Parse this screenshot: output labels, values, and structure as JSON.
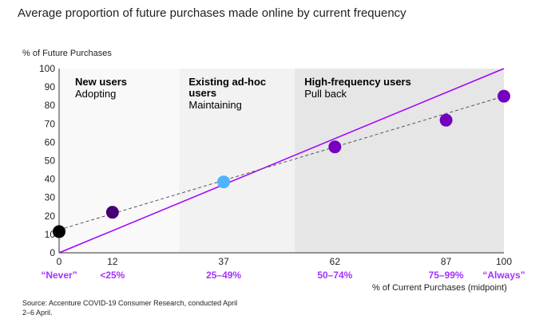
{
  "title": "Average proportion of future purchases made online by current frequency",
  "source": "Source: Accenture COVID-19 Consumer Research, conducted April 2–6 April.",
  "chart_data": {
    "type": "scatter",
    "ylabel": "% of Future Purchases",
    "xlabel": "% of Current Purchases (midpoint)",
    "xlim": [
      0,
      100
    ],
    "ylim": [
      0,
      100
    ],
    "x_ticks": [
      0,
      12,
      37,
      62,
      87,
      100
    ],
    "y_ticks": [
      0,
      10,
      20,
      30,
      40,
      50,
      60,
      70,
      80,
      90,
      100
    ],
    "category_labels": [
      {
        "x": 0,
        "label": "“Never”"
      },
      {
        "x": 12,
        "label": "<25%"
      },
      {
        "x": 37,
        "label": "25–49%"
      },
      {
        "x": 62,
        "label": "50–74%"
      },
      {
        "x": 87,
        "label": "75–99%"
      },
      {
        "x": 100,
        "label": "“Always”"
      }
    ],
    "points": [
      {
        "x": 0,
        "y": 11.5,
        "color": "#000000"
      },
      {
        "x": 12,
        "y": 22,
        "color": "#460073"
      },
      {
        "x": 37,
        "y": 38.5,
        "color": "#4fb3ff"
      },
      {
        "x": 62,
        "y": 57.5,
        "color": "#7500c0"
      },
      {
        "x": 87,
        "y": 72,
        "color": "#7500c0"
      },
      {
        "x": 100,
        "y": 85,
        "color": "#7500c0"
      }
    ],
    "reference_line": {
      "from": [
        0,
        0
      ],
      "to": [
        100,
        100
      ],
      "color": "#a100ff"
    },
    "trend_line": {
      "from": [
        0,
        12.5
      ],
      "to": [
        100,
        85
      ],
      "color": "#555555",
      "style": "dashed"
    },
    "zones": [
      {
        "from": 0,
        "to": 27,
        "title": "New users",
        "subtitle": "Adopting",
        "color": "#f9f9f9"
      },
      {
        "from": 27,
        "to": 53,
        "title": "Existing ad-hoc users",
        "subtitle": "Maintaining",
        "color": "#f2f2f2"
      },
      {
        "from": 53,
        "to": 100,
        "title": "High-frequency users",
        "subtitle": "Pull back",
        "color": "#e6e6e6"
      }
    ]
  }
}
